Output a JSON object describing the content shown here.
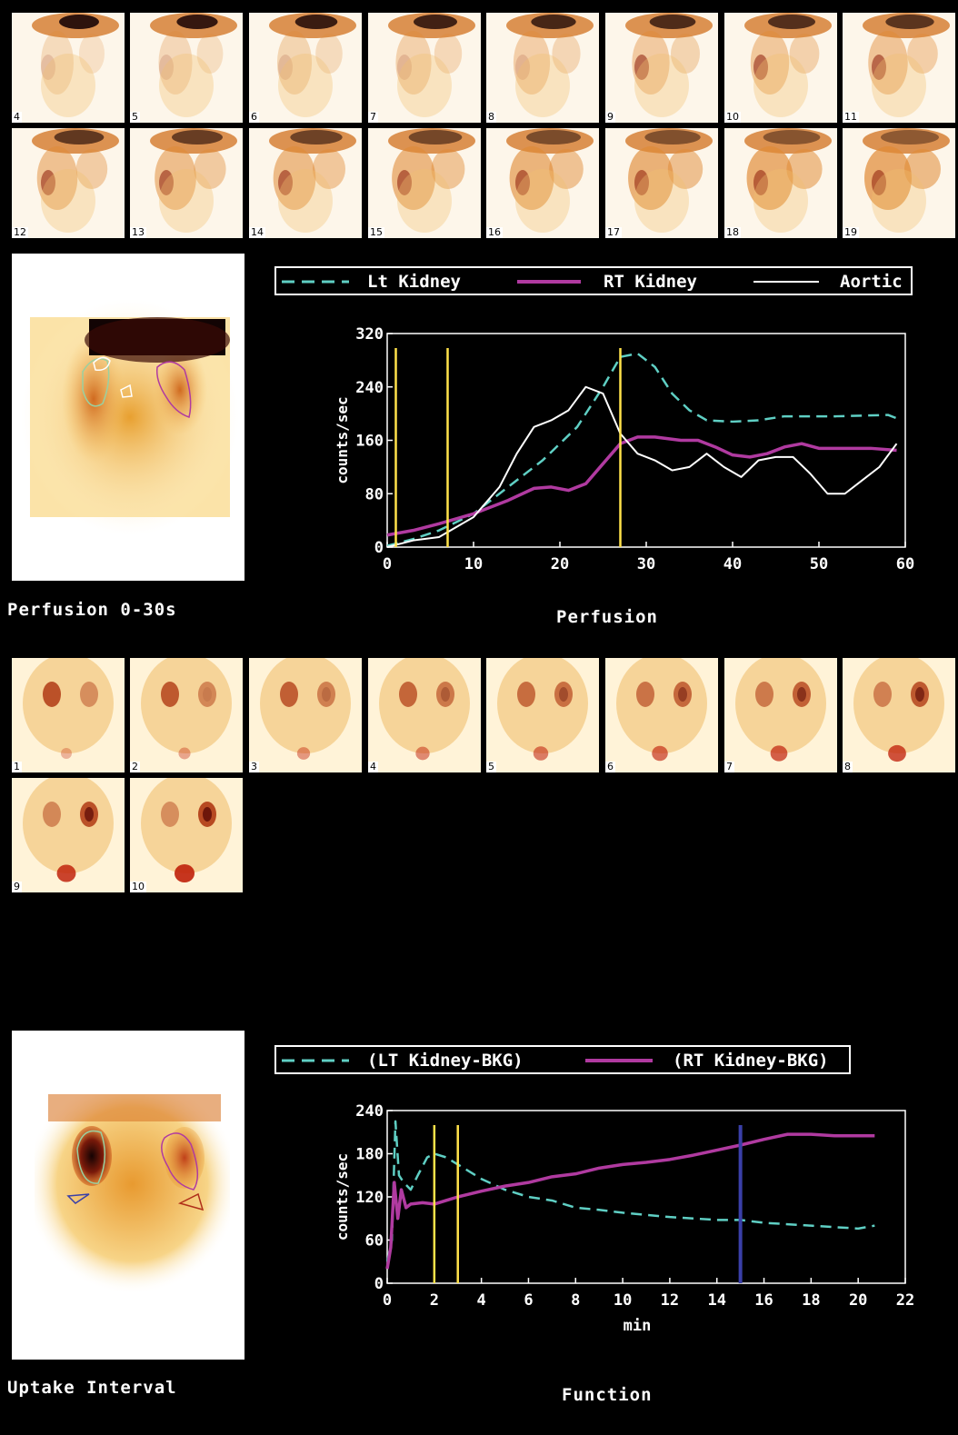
{
  "perfusion_frames": [
    "4",
    "5",
    "6",
    "7",
    "8",
    "9",
    "10",
    "11",
    "12",
    "13",
    "14",
    "15",
    "16",
    "17",
    "18",
    "19"
  ],
  "uptake_frames": [
    "1",
    "2",
    "3",
    "4",
    "5",
    "6",
    "7",
    "8",
    "9",
    "10"
  ],
  "captions": {
    "perfusion_left": "Perfusion 0-30s",
    "perfusion_chart": "Perfusion",
    "uptake_left": "Uptake Interval",
    "function_chart": "Function"
  },
  "legend1": [
    "Lt Kidney",
    "RT Kidney",
    "Aortic"
  ],
  "legend2": [
    "(LT Kidney-BKG)",
    "(RT Kidney-BKG)"
  ],
  "colors": {
    "cyan": "#5fcfc4",
    "magenta": "#b03aa0",
    "white": "#ffffff",
    "yellow": "#ffe24a",
    "blue": "#3a3fa8"
  },
  "chart_data": [
    {
      "type": "line",
      "title": "Perfusion",
      "ylabel": "counts/sec",
      "xlabel": "",
      "xlim": [
        0,
        60
      ],
      "ylim": [
        0,
        320
      ],
      "xticks": [
        "0",
        "10",
        "20",
        "30",
        "40",
        "50",
        "60"
      ],
      "yticks": [
        "0",
        "80",
        "160",
        "240",
        "320"
      ],
      "markers": [
        {
          "x": 1,
          "color": "yellow"
        },
        {
          "x": 7,
          "color": "yellow"
        },
        {
          "x": 27,
          "color": "yellow"
        }
      ],
      "series": [
        {
          "name": "Lt Kidney",
          "style": "dashed",
          "color": "cyan",
          "x": [
            0,
            3,
            6,
            10,
            14,
            18,
            22,
            25,
            27,
            29,
            31,
            33,
            35,
            37,
            40,
            43,
            46,
            48,
            52,
            55,
            58,
            59
          ],
          "y": [
            2,
            12,
            25,
            50,
            90,
            130,
            180,
            240,
            285,
            290,
            270,
            230,
            205,
            190,
            188,
            190,
            196,
            196,
            196,
            197,
            198,
            193
          ]
        },
        {
          "name": "RT Kidney",
          "style": "solid",
          "color": "magenta",
          "x": [
            0,
            3,
            6,
            10,
            14,
            17,
            19,
            21,
            23,
            25,
            27,
            29,
            31,
            34,
            36,
            38,
            40,
            42,
            44,
            46,
            48,
            50,
            53,
            56,
            59
          ],
          "y": [
            18,
            25,
            35,
            50,
            70,
            88,
            90,
            85,
            95,
            125,
            155,
            165,
            165,
            160,
            160,
            150,
            138,
            135,
            140,
            150,
            155,
            148,
            148,
            148,
            145
          ]
        },
        {
          "name": "Aortic",
          "style": "solid",
          "color": "white",
          "x": [
            0,
            3,
            6,
            10,
            13,
            15,
            17,
            19,
            21,
            23,
            25,
            27,
            29,
            31,
            33,
            35,
            37,
            39,
            41,
            43,
            45,
            47,
            49,
            51,
            53,
            55,
            57,
            59
          ],
          "y": [
            0,
            10,
            15,
            45,
            90,
            140,
            180,
            190,
            205,
            240,
            230,
            170,
            140,
            130,
            115,
            120,
            140,
            120,
            105,
            130,
            135,
            135,
            110,
            80,
            80,
            100,
            120,
            155
          ]
        }
      ]
    },
    {
      "type": "line",
      "title": "Function",
      "ylabel": "counts/sec",
      "xlabel": "min",
      "xlim": [
        0,
        22
      ],
      "ylim": [
        0,
        240
      ],
      "xticks": [
        "0",
        "2",
        "4",
        "6",
        "8",
        "10",
        "12",
        "14",
        "16",
        "18",
        "20",
        "22"
      ],
      "yticks": [
        "0",
        "60",
        "120",
        "180",
        "240"
      ],
      "markers": [
        {
          "x": 2,
          "color": "yellow"
        },
        {
          "x": 3,
          "color": "yellow"
        },
        {
          "x": 15,
          "color": "blue"
        }
      ],
      "series": [
        {
          "name": "(LT Kidney-BKG)",
          "style": "dashed",
          "color": "cyan",
          "x": [
            0,
            0.2,
            0.35,
            0.5,
            0.7,
            1.0,
            1.3,
            1.7,
            2.0,
            2.5,
            3.0,
            4.0,
            5.0,
            6.0,
            7.0,
            8.0,
            9.0,
            10.0,
            11.0,
            12.0,
            13.0,
            14.0,
            15.0,
            16.0,
            17.0,
            18.0,
            19.0,
            20.0,
            20.7
          ],
          "y": [
            30,
            60,
            225,
            150,
            140,
            130,
            150,
            175,
            180,
            175,
            165,
            145,
            130,
            120,
            115,
            105,
            102,
            98,
            95,
            92,
            90,
            88,
            88,
            84,
            82,
            80,
            78,
            76,
            80
          ]
        },
        {
          "name": "(RT Kidney-BKG)",
          "style": "solid",
          "color": "magenta",
          "x": [
            0,
            0.15,
            0.3,
            0.45,
            0.6,
            0.8,
            1.0,
            1.5,
            2.0,
            2.5,
            3.0,
            4.0,
            5.0,
            6.0,
            7.0,
            8.0,
            9.0,
            10.0,
            11.0,
            12.0,
            13.0,
            14.0,
            15.0,
            16.0,
            17.0,
            18.0,
            19.0,
            20.0,
            20.7
          ],
          "y": [
            20,
            50,
            140,
            90,
            130,
            105,
            110,
            112,
            110,
            115,
            120,
            128,
            135,
            140,
            148,
            152,
            160,
            165,
            168,
            172,
            178,
            185,
            192,
            200,
            207,
            207,
            205,
            205,
            205
          ]
        }
      ]
    }
  ]
}
